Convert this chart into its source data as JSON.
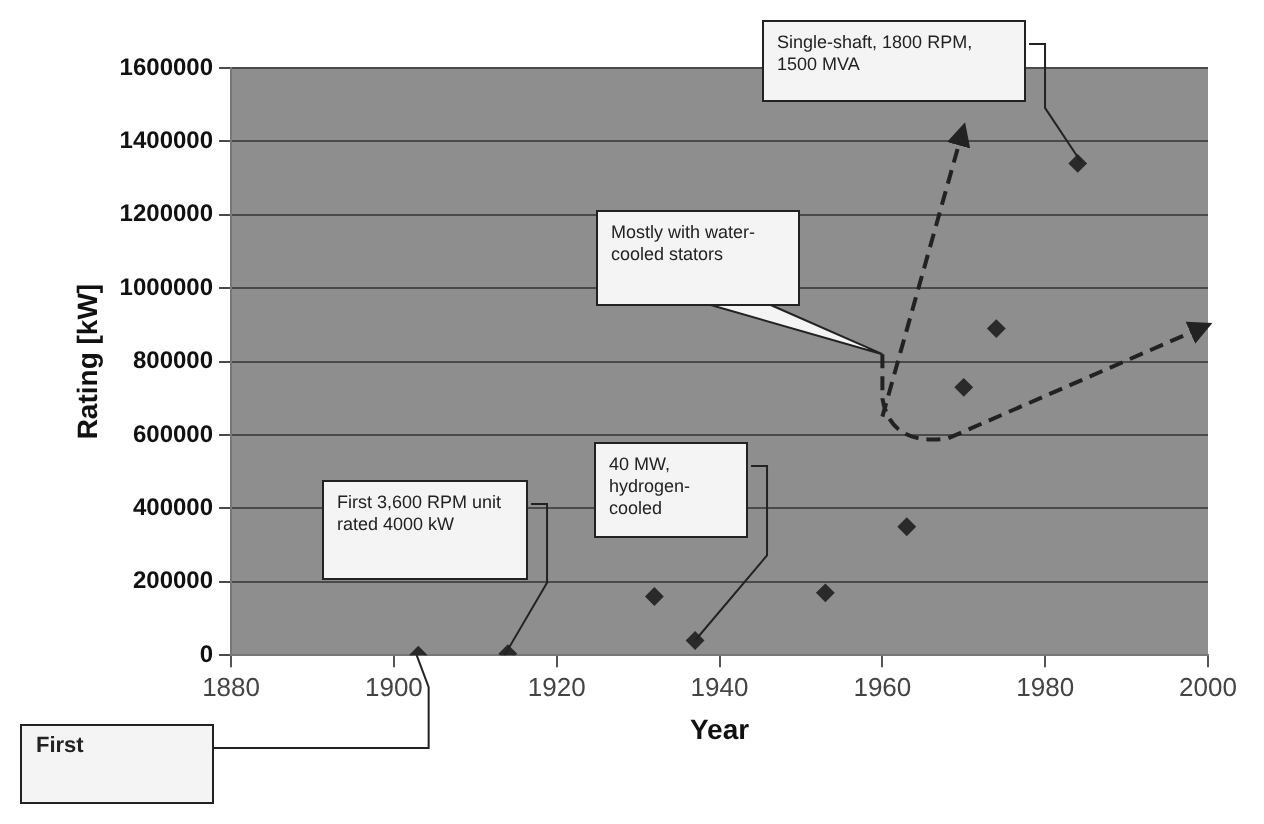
{
  "chart_data": {
    "type": "scatter",
    "xlabel": "Year",
    "ylabel": "Rating [kW]",
    "x": [
      1903,
      1914,
      1932,
      1937,
      1953,
      1963,
      1970,
      1974,
      1984
    ],
    "series": [
      {
        "color": "#2a2a2a",
        "values": [
          0,
          4000,
          160000,
          40000,
          170000,
          350000,
          730000,
          890000,
          1340000
        ]
      }
    ],
    "xlim": [
      1880,
      2000
    ],
    "xticks": [
      1880,
      1900,
      1920,
      1940,
      1960,
      1980,
      2000
    ],
    "ylim": [
      0,
      1600000
    ],
    "yticks": [
      0,
      200000,
      400000,
      600000,
      800000,
      1000000,
      1200000,
      1400000,
      1600000
    ],
    "grid": "y",
    "legend": false,
    "marker": "diamond",
    "annotations": [
      "First",
      "First 3,600 RPM unit rated 4000 kW",
      "40 MW, hydrogen-cooled",
      "Mostly with water-cooled stators",
      "Single-shaft, 1800 RPM, 1500 MVA"
    ]
  }
}
